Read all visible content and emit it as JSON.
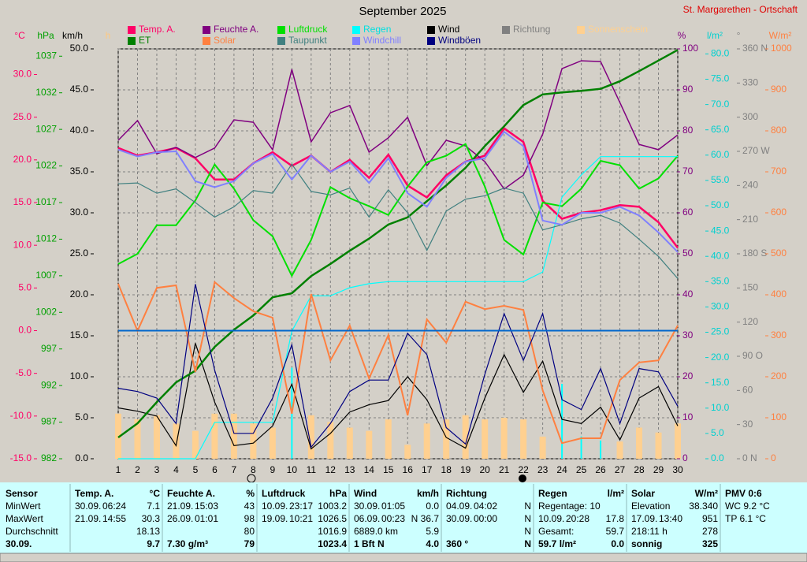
{
  "title": "September 2025",
  "station": "St. Margarethen - Ortschaft",
  "chart_data": {
    "type": "line",
    "x": [
      1,
      2,
      3,
      4,
      5,
      6,
      7,
      8,
      9,
      10,
      11,
      12,
      13,
      14,
      15,
      16,
      17,
      18,
      19,
      20,
      21,
      22,
      23,
      24,
      25,
      26,
      27,
      28,
      29,
      30
    ],
    "xlim": [
      1,
      30
    ],
    "xticks": [
      1,
      2,
      3,
      4,
      5,
      6,
      7,
      8,
      9,
      10,
      11,
      12,
      13,
      14,
      15,
      16,
      17,
      18,
      19,
      20,
      21,
      22,
      23,
      24,
      25,
      26,
      27,
      28,
      29,
      30
    ],
    "axes": [
      {
        "id": "temp",
        "label": "°C",
        "color": "#ff0066",
        "ylim": [
          -15,
          33
        ],
        "yticks": [
          {
            "value": -15,
            "label": "-15.0"
          },
          {
            "value": -10,
            "label": "-10.0"
          },
          {
            "value": -5,
            "label": "-5.0"
          },
          {
            "value": 0,
            "label": "0.0"
          },
          {
            "value": 5,
            "label": "5.0"
          },
          {
            "value": 10,
            "label": "10.0"
          },
          {
            "value": 15,
            "label": "15.0"
          },
          {
            "value": 20,
            "label": "20.0"
          },
          {
            "value": 25,
            "label": "25.0"
          },
          {
            "value": 30,
            "label": "30.0"
          }
        ]
      },
      {
        "id": "hpa",
        "label": "hPa",
        "color": "#00a000",
        "ylim": [
          982,
          1038
        ],
        "yticks": [
          982,
          987,
          992,
          997,
          1002,
          1007,
          1012,
          1017,
          1022,
          1027,
          1032,
          1037
        ]
      },
      {
        "id": "kmh",
        "label": "km/h",
        "color": "#000000",
        "ylim": [
          0,
          50
        ],
        "grid": true,
        "yticks": [
          {
            "value": 0,
            "label": "0.0"
          },
          {
            "value": 5,
            "label": "5.0"
          },
          {
            "value": 10,
            "label": "10.0"
          },
          {
            "value": 15,
            "label": "15.0"
          },
          {
            "value": 20,
            "label": "20.0"
          },
          {
            "value": 25,
            "label": "25.0"
          },
          {
            "value": 30,
            "label": "30.0"
          },
          {
            "value": 35,
            "label": "35.0"
          },
          {
            "value": 40,
            "label": "40.0"
          },
          {
            "value": 45,
            "label": "45.0"
          },
          {
            "value": 50,
            "label": "50.0"
          }
        ]
      },
      {
        "id": "sun",
        "label": "h",
        "color": "#ffc880",
        "ylim": [
          0,
          50
        ]
      },
      {
        "id": "pct",
        "label": "%",
        "color": "#800080",
        "ylim": [
          0,
          100
        ],
        "yticks": [
          0,
          10,
          20,
          30,
          40,
          50,
          60,
          70,
          80,
          90,
          100
        ]
      },
      {
        "id": "rain",
        "label": "l/m²",
        "color": "#00d0d0",
        "ylim": [
          0,
          81
        ],
        "yticks": [
          {
            "value": 0,
            "label": "0.0"
          },
          {
            "value": 5,
            "label": "5.0"
          },
          {
            "value": 10,
            "label": "10.0"
          },
          {
            "value": 15,
            "label": "15.0"
          },
          {
            "value": 20,
            "label": "20.0"
          },
          {
            "value": 25,
            "label": "25.0"
          },
          {
            "value": 30,
            "label": "30.0"
          },
          {
            "value": 35,
            "label": "35.0"
          },
          {
            "value": 40,
            "label": "40.0"
          },
          {
            "value": 45,
            "label": "45.0"
          },
          {
            "value": 50,
            "label": "50.0"
          },
          {
            "value": 55,
            "label": "55.0"
          },
          {
            "value": 60,
            "label": "60.0"
          },
          {
            "value": 65,
            "label": "65.0"
          },
          {
            "value": 70,
            "label": "70.0"
          },
          {
            "value": 75,
            "label": "75.0"
          },
          {
            "value": 80,
            "label": "80.0"
          }
        ]
      },
      {
        "id": "deg",
        "label": "°",
        "color": "#808080",
        "ylim": [
          0,
          360
        ],
        "yticks": [
          {
            "value": 0,
            "label": "0 N"
          },
          30,
          60,
          {
            "value": 90,
            "label": "90 O"
          },
          120,
          150,
          {
            "value": 180,
            "label": "180 S"
          },
          210,
          240,
          {
            "value": 270,
            "label": "270 W"
          },
          300,
          330,
          {
            "value": 360,
            "label": "360 N"
          }
        ]
      },
      {
        "id": "solar",
        "label": "W/m²",
        "color": "#ff8040",
        "ylim": [
          0,
          1000
        ],
        "yticks": [
          0,
          100,
          200,
          300,
          400,
          500,
          600,
          700,
          800,
          900,
          1000
        ]
      }
    ],
    "series": [
      {
        "name": "Temp. A.",
        "color": "#ff0066",
        "axis": "temp",
        "values": [
          21.4,
          20.5,
          20.9,
          21.4,
          20.2,
          17.7,
          17.7,
          19.6,
          20.9,
          19.3,
          20.5,
          18.6,
          20.0,
          17.9,
          20.6,
          17.0,
          15.6,
          18.2,
          19.8,
          20.5,
          23.7,
          22.1,
          15.2,
          13.1,
          13.8,
          14.1,
          14.7,
          14.5,
          12.7,
          9.7
        ]
      },
      {
        "name": "Feuchte A.",
        "color": "#800080",
        "axis": "pct",
        "values": [
          77.7,
          82.5,
          74.4,
          76,
          73.5,
          75.8,
          82.7,
          82.1,
          75.4,
          95,
          77.3,
          84.4,
          86.2,
          74.8,
          78.3,
          83.3,
          71.5,
          77.7,
          76.3,
          72.5,
          65.8,
          69.2,
          79.2,
          95.2,
          97.1,
          96.9,
          86.9,
          76.7,
          75.4,
          79
        ]
      },
      {
        "name": "Luftdruck",
        "color": "#00e000",
        "axis": "hpa",
        "values": [
          1008.6,
          1010.0,
          1013.9,
          1013.9,
          1017.3,
          1022.2,
          1018.9,
          1014.6,
          1012.4,
          1007.0,
          1011.9,
          1019.1,
          1017.6,
          1016.5,
          1015.3,
          1019.2,
          1022.5,
          1023.4,
          1025.0,
          1019.2,
          1011.9,
          1009.9,
          1017.0,
          1016.5,
          1018.9,
          1022.7,
          1022.1,
          1018.9,
          1020.3,
          1023.4
        ]
      },
      {
        "name": "Regen",
        "color": "#00ffff",
        "axis": "rain",
        "values": [
          0,
          0,
          0,
          0,
          0,
          7.2,
          7.2,
          7.2,
          7.2,
          25.2,
          32.2,
          32.2,
          33.8,
          34.6,
          35.0,
          35.0,
          35.0,
          35.0,
          35.0,
          35.0,
          35.0,
          35.0,
          36.9,
          51.7,
          56.1,
          59.7,
          59.7,
          59.7,
          59.7,
          59.7
        ],
        "bar_values": [
          null,
          null,
          null,
          null,
          null,
          7.2,
          null,
          null,
          null,
          18.0,
          7.0,
          null,
          1.6,
          0.8,
          0.4,
          null,
          null,
          null,
          null,
          null,
          null,
          null,
          1.9,
          14.8,
          4.4,
          3.6,
          null,
          null,
          null,
          null
        ]
      },
      {
        "name": "Wind",
        "color": "#000000",
        "axis": "kmh",
        "values": [
          6.2,
          5.8,
          5.2,
          1.6,
          14.1,
          6.9,
          1.6,
          1.9,
          4.0,
          9.1,
          1.2,
          3.1,
          5.7,
          6.6,
          7.1,
          10.0,
          7.2,
          2.6,
          1.3,
          7.4,
          12.7,
          8.1,
          11.9,
          4.8,
          4.3,
          6.3,
          2.3,
          7.4,
          8.8,
          4.0
        ]
      },
      {
        "name": "Richtung",
        "color": "#808080",
        "axis": "deg"
      },
      {
        "name": "Sonnenschein",
        "color": "#ffd090",
        "axis": "sun",
        "type": "bar",
        "values": [
          5.5,
          4.8,
          5.3,
          4.3,
          3.4,
          5.5,
          5.5,
          4.3,
          3.8,
          null,
          5.3,
          4.5,
          3.8,
          3.4,
          4.8,
          1.7,
          4.3,
          4.8,
          5.3,
          4.8,
          5.0,
          4.8,
          2.7,
          null,
          null,
          null,
          2.1,
          3.8,
          3.2,
          4.3
        ]
      },
      {
        "name": "ET",
        "color": "#008000",
        "axis": "rain",
        "values": [
          4.2,
          7.0,
          11.2,
          15.1,
          17.4,
          22.1,
          25.5,
          28.3,
          31.9,
          32.7,
          36.1,
          38.5,
          41.1,
          43.5,
          46.3,
          47.7,
          50.9,
          54.0,
          57.5,
          61.8,
          65.7,
          69.9,
          72.0,
          72.4,
          72.7,
          73.1,
          74.6,
          76.6,
          78.7,
          80.8
        ]
      },
      {
        "name": "Solar",
        "color": "#ff8040",
        "axis": "solar",
        "values": [
          427,
          312,
          417,
          423,
          212,
          431,
          392,
          360,
          344,
          110,
          402,
          240,
          325,
          196,
          302,
          106,
          340,
          283,
          383,
          365,
          373,
          363,
          167,
          38,
          50,
          50,
          192,
          235,
          240,
          325
        ]
      },
      {
        "name": "Taupunkt",
        "color": "#408080",
        "axis": "temp",
        "values": [
          17.2,
          17.3,
          16.1,
          16.6,
          15.0,
          13.3,
          14.5,
          16.4,
          16.1,
          19.5,
          16.3,
          15.9,
          16.7,
          13.3,
          16.5,
          13.8,
          9.4,
          14.0,
          15.4,
          15.8,
          16.7,
          16.1,
          11.8,
          12.4,
          13.1,
          13.5,
          12.6,
          10.7,
          8.7,
          6.1
        ]
      },
      {
        "name": "Windchill",
        "color": "#8080ff",
        "axis": "temp",
        "values": [
          21.2,
          20.4,
          20.9,
          21.0,
          17.5,
          16.8,
          17.5,
          19.6,
          20.7,
          17.7,
          20.5,
          18.6,
          19.8,
          17.3,
          20.2,
          16.1,
          14.5,
          17.9,
          19.8,
          20.2,
          23.3,
          21.6,
          12.9,
          12.4,
          13.8,
          13.8,
          14.5,
          13.5,
          11.5,
          9.2
        ]
      },
      {
        "name": "Windböen",
        "color": "#000080",
        "axis": "kmh",
        "values": [
          8.6,
          8.2,
          7.4,
          4.3,
          21.3,
          10.8,
          3.1,
          3.1,
          7.4,
          13.9,
          1.4,
          4.3,
          8.2,
          9.6,
          9.6,
          15.3,
          12.7,
          3.8,
          1.8,
          10.3,
          17.7,
          12.0,
          17.7,
          7.2,
          6.0,
          11.0,
          4.3,
          11.0,
          10.6,
          6.4
        ]
      }
    ]
  },
  "table": {
    "panels": [
      {
        "header": [
          "Sensor"
        ],
        "rows": [
          [
            "MinWert"
          ],
          [
            "MaxWert"
          ],
          [
            "Durchschnitt"
          ],
          [
            "30.09."
          ]
        ]
      },
      {
        "header": [
          "Temp. A.",
          "°C"
        ],
        "rows": [
          [
            "30.09.",
            "06:24",
            "7.1"
          ],
          [
            "21.09.",
            "14:55",
            "30.3"
          ],
          [
            "18.13"
          ],
          [
            "9.7"
          ]
        ]
      },
      {
        "header": [
          "Feuchte A.",
          "%"
        ],
        "rows": [
          [
            "21.09.",
            "15:03",
            "43"
          ],
          [
            "26.09.",
            "01:01",
            "98"
          ],
          [
            "80"
          ],
          [
            "7.30 g/m³",
            "79"
          ]
        ]
      },
      {
        "header": [
          "Luftdruck",
          "hPa"
        ],
        "rows": [
          [
            "10.09.",
            "23:17",
            "1003.2"
          ],
          [
            "19.09.",
            "10:21",
            "1026.5"
          ],
          [
            "1016.9"
          ],
          [
            "1023.4"
          ]
        ]
      },
      {
        "header": [
          "Wind",
          "km/h"
        ],
        "rows": [
          [
            "30.09.",
            "01:05",
            "0.0"
          ],
          [
            "06.09.",
            "00:23",
            "N 36.7"
          ],
          [
            "6889.0 km",
            "5.9"
          ],
          [
            "1 Bft N",
            "4.0"
          ]
        ]
      },
      {
        "header": [
          "Richtung"
        ],
        "rows": [
          [
            "04.09.",
            "04:02",
            "N"
          ],
          [
            "30.09.",
            "00:00",
            "N"
          ],
          [
            "N"
          ],
          [
            "360 °",
            "N"
          ]
        ]
      },
      {
        "header": [
          "Regen",
          "l/m²"
        ],
        "rows": [
          [
            "Regentage: 10"
          ],
          [
            "10.09.",
            "20:28",
            "17.8"
          ],
          [
            "Gesamt:",
            "59.7"
          ],
          [
            "59.7 l/m²",
            "0.0"
          ]
        ]
      },
      {
        "header": [
          "Solar",
          "W/m²"
        ],
        "rows": [
          [
            "Elevation",
            "38.340"
          ],
          [
            "17.09.",
            "13:40",
            "951"
          ],
          [
            "218:11 h",
            "278"
          ],
          [
            "sonnig",
            "325"
          ]
        ]
      },
      {
        "header": [
          "PMV 0:6"
        ],
        "rows": [
          [
            "WC 9.2 °C"
          ],
          [
            "TP 6.1 °C"
          ]
        ]
      }
    ]
  }
}
